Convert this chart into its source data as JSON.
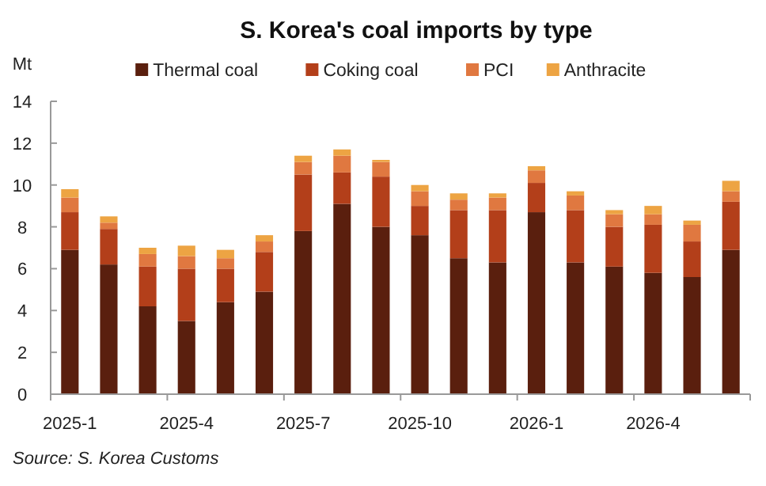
{
  "chart_data": {
    "type": "bar",
    "title": "S. Korea's coal imports by type",
    "ylabel": "Mt",
    "stacked": true,
    "legend": "top",
    "grid": false,
    "categories": [
      "2025-1",
      null,
      null,
      "2025-4",
      null,
      null,
      "2025-7",
      null,
      null,
      "2025-10",
      null,
      null,
      "2026-1",
      null,
      null,
      "2026-4",
      null,
      null
    ],
    "ylim": [
      0,
      14
    ],
    "yticks": [
      0,
      2,
      4,
      6,
      8,
      10,
      12,
      14
    ],
    "series": [
      {
        "name": "Thermal coal",
        "color": "#5a1f0e",
        "values": [
          6.9,
          6.2,
          4.2,
          3.5,
          4.4,
          4.9,
          7.8,
          9.1,
          8.0,
          7.6,
          6.5,
          6.3,
          8.7,
          6.3,
          6.1,
          5.8,
          5.6,
          6.9
        ]
      },
      {
        "name": "Coking coal",
        "color": "#b33f1a",
        "values": [
          1.8,
          1.7,
          1.9,
          2.5,
          1.6,
          1.9,
          2.7,
          1.5,
          2.4,
          1.4,
          2.3,
          2.5,
          1.4,
          2.5,
          1.9,
          2.3,
          1.7,
          2.3
        ]
      },
      {
        "name": "PCI",
        "color": "#e07840",
        "values": [
          0.7,
          0.3,
          0.6,
          0.6,
          0.5,
          0.5,
          0.6,
          0.8,
          0.7,
          0.7,
          0.5,
          0.6,
          0.6,
          0.7,
          0.6,
          0.5,
          0.8,
          0.5
        ]
      },
      {
        "name": "Anthracite",
        "color": "#eda443",
        "values": [
          0.4,
          0.3,
          0.3,
          0.5,
          0.4,
          0.3,
          0.3,
          0.3,
          0.1,
          0.3,
          0.3,
          0.2,
          0.2,
          0.2,
          0.2,
          0.4,
          0.2,
          0.5
        ]
      }
    ],
    "annotations": [
      "Source: S. Korea Customs"
    ]
  }
}
